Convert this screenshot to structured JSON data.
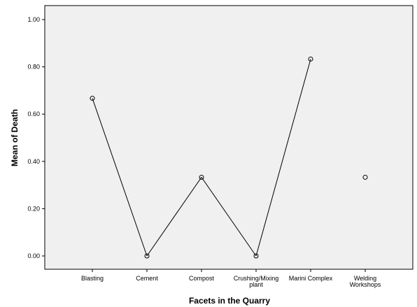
{
  "chart_data": {
    "type": "line",
    "title": "",
    "xlabel": "Facets in the Quarry",
    "ylabel": "Mean of Death",
    "categories": [
      [
        "Blasting"
      ],
      [
        "Cement"
      ],
      [
        "Compost"
      ],
      [
        "Crushing/Mixing",
        "plant"
      ],
      [
        "Marini Complex"
      ],
      [
        "Welding",
        "Workshops"
      ]
    ],
    "values": [
      0.667,
      0.0,
      0.333,
      0.0,
      0.833,
      0.333
    ],
    "connected": [
      true,
      true,
      true,
      true,
      true,
      false
    ],
    "ylim": [
      -0.05,
      1.05
    ],
    "yticks": [
      "0.00",
      "0.20",
      "0.40",
      "0.60",
      "0.80",
      "1.00"
    ],
    "grid": false,
    "colors": {
      "plot_background": "#f0f0f0",
      "line": "#000000",
      "marker": "#000000"
    }
  }
}
